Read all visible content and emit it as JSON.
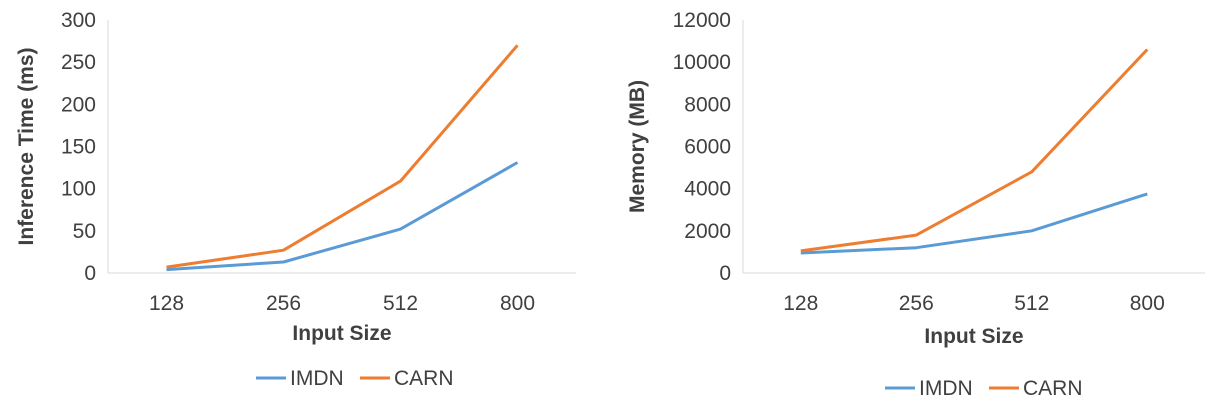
{
  "colors": {
    "imdn": "#5B9BD5",
    "carn": "#ED7D31",
    "axis": "#D9D9D9",
    "text": "#404040"
  },
  "chart_data": [
    {
      "type": "line",
      "categories": [
        "128",
        "256",
        "512",
        "800"
      ],
      "xlabel": "Input Size",
      "ylabel": "Inference Time (ms)",
      "ylim": [
        0,
        300
      ],
      "yticks": [
        0,
        50,
        100,
        150,
        200,
        250,
        300
      ],
      "grid": false,
      "legend": "bottom",
      "series": [
        {
          "name": "IMDN",
          "values": [
            4,
            13,
            52,
            131
          ],
          "color": "#5B9BD5"
        },
        {
          "name": "CARN",
          "values": [
            7,
            27,
            109,
            270
          ],
          "color": "#ED7D31"
        }
      ]
    },
    {
      "type": "line",
      "categories": [
        "128",
        "256",
        "512",
        "800"
      ],
      "xlabel": "Input Size",
      "ylabel": "Memory (MB)",
      "ylim": [
        0,
        12000
      ],
      "yticks": [
        0,
        2000,
        4000,
        6000,
        8000,
        10000,
        12000
      ],
      "grid": false,
      "legend": "bottom",
      "series": [
        {
          "name": "IMDN",
          "values": [
            950,
            1200,
            2000,
            3750
          ],
          "color": "#5B9BD5"
        },
        {
          "name": "CARN",
          "values": [
            1050,
            1800,
            4800,
            10600
          ],
          "color": "#ED7D31"
        }
      ]
    }
  ]
}
